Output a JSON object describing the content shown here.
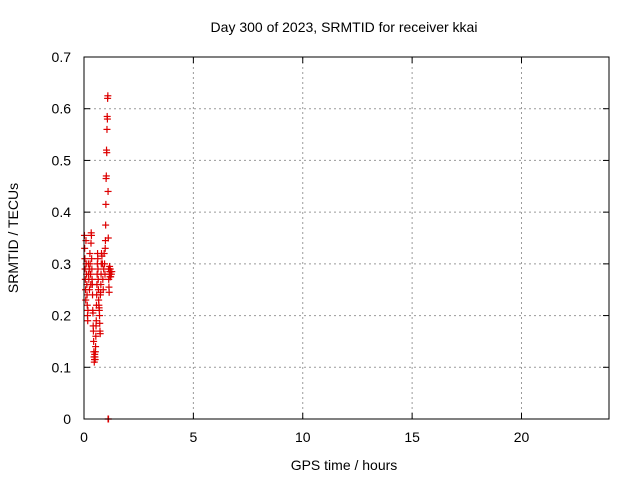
{
  "chart_data": {
    "type": "scatter",
    "title": "Day 300 of 2023, SRMTID for receiver kkai",
    "xlabel": "GPS time / hours",
    "ylabel": "SRMTID / TECUs",
    "xlim": [
      0,
      24
    ],
    "ylim": [
      0,
      0.7
    ],
    "xticks": [
      0,
      5,
      10,
      15,
      20
    ],
    "yticks": [
      0,
      0.1,
      0.2,
      0.3,
      0.4,
      0.5,
      0.6,
      0.7
    ],
    "grid": true,
    "marker": "+",
    "color": "#dd0000",
    "series": [
      {
        "name": "kkai",
        "points": [
          [
            0.02,
            0.355
          ],
          [
            0.03,
            0.33
          ],
          [
            0.04,
            0.31
          ],
          [
            0.05,
            0.29
          ],
          [
            0.06,
            0.27
          ],
          [
            0.07,
            0.25
          ],
          [
            0.08,
            0.23
          ],
          [
            0.09,
            0.345
          ],
          [
            0.1,
            0.3
          ],
          [
            0.12,
            0.28
          ],
          [
            0.13,
            0.26
          ],
          [
            0.14,
            0.24
          ],
          [
            0.15,
            0.22
          ],
          [
            0.16,
            0.2
          ],
          [
            0.17,
            0.19
          ],
          [
            0.18,
            0.21
          ],
          [
            0.2,
            0.3
          ],
          [
            0.21,
            0.28
          ],
          [
            0.22,
            0.27
          ],
          [
            0.24,
            0.29
          ],
          [
            0.25,
            0.25
          ],
          [
            0.27,
            0.32
          ],
          [
            0.28,
            0.3
          ],
          [
            0.3,
            0.28
          ],
          [
            0.31,
            0.26
          ],
          [
            0.32,
            0.34
          ],
          [
            0.33,
            0.36
          ],
          [
            0.34,
            0.355
          ],
          [
            0.35,
            0.31
          ],
          [
            0.36,
            0.29
          ],
          [
            0.37,
            0.27
          ],
          [
            0.38,
            0.26
          ],
          [
            0.39,
            0.24
          ],
          [
            0.4,
            0.21
          ],
          [
            0.41,
            0.205
          ],
          [
            0.42,
            0.18
          ],
          [
            0.43,
            0.17
          ],
          [
            0.44,
            0.15
          ],
          [
            0.45,
            0.13
          ],
          [
            0.46,
            0.12
          ],
          [
            0.47,
            0.11
          ],
          [
            0.48,
            0.115
          ],
          [
            0.49,
            0.125
          ],
          [
            0.5,
            0.12
          ],
          [
            0.51,
            0.115
          ],
          [
            0.52,
            0.13
          ],
          [
            0.53,
            0.14
          ],
          [
            0.54,
            0.16
          ],
          [
            0.55,
            0.18
          ],
          [
            0.56,
            0.19
          ],
          [
            0.57,
            0.22
          ],
          [
            0.58,
            0.24
          ],
          [
            0.59,
            0.26
          ],
          [
            0.6,
            0.28
          ],
          [
            0.61,
            0.3
          ],
          [
            0.62,
            0.32
          ],
          [
            0.63,
            0.31
          ],
          [
            0.64,
            0.29
          ],
          [
            0.65,
            0.27
          ],
          [
            0.66,
            0.25
          ],
          [
            0.67,
            0.23
          ],
          [
            0.68,
            0.22
          ],
          [
            0.69,
            0.215
          ],
          [
            0.7,
            0.21
          ],
          [
            0.71,
            0.2
          ],
          [
            0.72,
            0.185
          ],
          [
            0.73,
            0.17
          ],
          [
            0.74,
            0.165
          ],
          [
            0.75,
            0.24
          ],
          [
            0.76,
            0.245
          ],
          [
            0.77,
            0.26
          ],
          [
            0.78,
            0.28
          ],
          [
            0.79,
            0.3
          ],
          [
            0.8,
            0.32
          ],
          [
            0.82,
            0.315
          ],
          [
            0.84,
            0.3
          ],
          [
            0.86,
            0.27
          ],
          [
            0.88,
            0.25
          ],
          [
            0.9,
            0.29
          ],
          [
            0.92,
            0.32
          ],
          [
            0.94,
            0.3
          ],
          [
            0.96,
            0.28
          ],
          [
            0.97,
            0.33
          ],
          [
            0.98,
            0.345
          ],
          [
            0.99,
            0.375
          ],
          [
            1.0,
            0.415
          ],
          [
            1.01,
            0.465
          ],
          [
            1.02,
            0.47
          ],
          [
            1.03,
            0.52
          ],
          [
            1.04,
            0.515
          ],
          [
            1.05,
            0.56
          ],
          [
            1.06,
            0.585
          ],
          [
            1.07,
            0.58
          ],
          [
            1.08,
            0.62
          ],
          [
            1.09,
            0.625
          ],
          [
            1.1,
            0.44
          ],
          [
            1.11,
            0.35
          ],
          [
            1.12,
            0.29
          ],
          [
            1.13,
            0.27
          ],
          [
            1.14,
            0.255
          ],
          [
            1.15,
            0.245
          ],
          [
            1.16,
            0.28
          ],
          [
            1.17,
            0.295
          ],
          [
            1.18,
            0.285
          ],
          [
            1.19,
            0.275
          ],
          [
            1.2,
            0.29
          ],
          [
            1.21,
            0.285
          ],
          [
            1.22,
            0.275
          ],
          [
            1.25,
            0.28
          ],
          [
            1.27,
            0.285
          ],
          [
            1.1,
            0.0
          ],
          [
            1.12,
            0.0
          ]
        ]
      }
    ]
  }
}
